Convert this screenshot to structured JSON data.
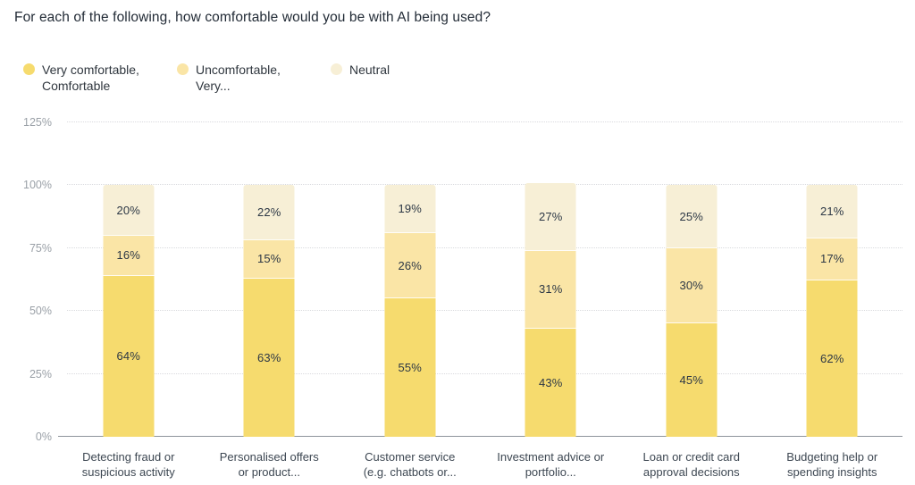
{
  "title": "For each of the following, how comfortable would you be with AI being used?",
  "legend": {
    "items": [
      {
        "label": "Very comfortable,\nComfortable",
        "color": "#F6DB6E"
      },
      {
        "label": "Uncomfortable,\nVery...",
        "color": "#FAE5A6"
      },
      {
        "label": "Neutral",
        "color": "#F7EFD6"
      }
    ]
  },
  "chart_data": {
    "type": "bar",
    "stacked": true,
    "title": "For each of the following, how comfortable would you be with AI being used?",
    "categories": [
      "Detecting fraud or\nsuspicious activity",
      "Personalised offers\nor product...",
      "Customer service\n(e.g. chatbots or...",
      "Investment advice or\nportfolio...",
      "Loan or credit card\napproval decisions",
      "Budgeting help or\nspending insights"
    ],
    "series": [
      {
        "name": "Very comfortable, Comfortable",
        "color": "#F6DB6E",
        "values": [
          64,
          63,
          55,
          43,
          45,
          62
        ]
      },
      {
        "name": "Uncomfortable, Very...",
        "color": "#FAE5A6",
        "values": [
          16,
          15,
          26,
          31,
          30,
          17
        ]
      },
      {
        "name": "Neutral",
        "color": "#F7EFD6",
        "values": [
          20,
          22,
          19,
          27,
          25,
          21
        ]
      }
    ],
    "value_suffix": "%",
    "y_ticks": [
      "0%",
      "25%",
      "50%",
      "75%",
      "100%",
      "125%"
    ],
    "y_tick_values": [
      0,
      25,
      50,
      75,
      100,
      125
    ],
    "ylim": [
      0,
      125
    ],
    "grid": "horizontal-dotted",
    "legend_position": "top-left"
  },
  "colors": {
    "axis_line": "#8d949b",
    "gridline": "#d9dade",
    "tick_label": "#9aa0a7",
    "category_label": "#3d4752",
    "segment_label": "#2c3745",
    "title_text": "#222b36",
    "background": "#ffffff"
  }
}
